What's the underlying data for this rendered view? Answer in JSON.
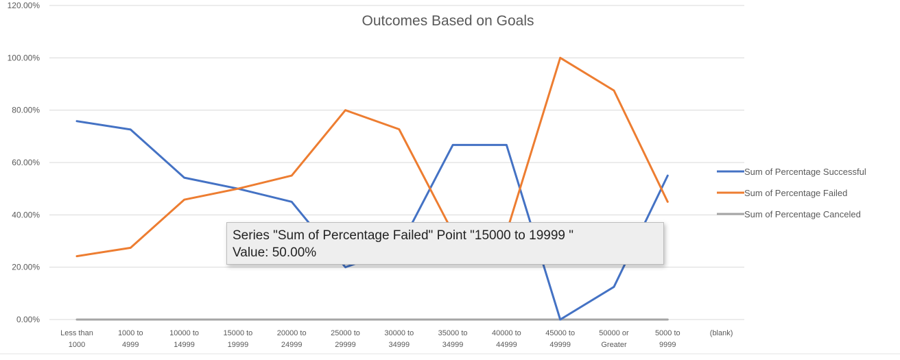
{
  "chart_data": {
    "type": "line",
    "title": "Outcomes Based on Goals",
    "xlabel": "",
    "ylabel": "",
    "ylim": [
      0,
      120
    ],
    "y_ticks": [
      "0.00%",
      "20.00%",
      "40.00%",
      "60.00%",
      "80.00%",
      "100.00%",
      "120.00%"
    ],
    "y_tick_values": [
      0,
      20,
      40,
      60,
      80,
      100,
      120
    ],
    "grid": true,
    "legend_position": "right",
    "categories": [
      [
        "Less than",
        "1000"
      ],
      [
        "1000 to",
        "4999"
      ],
      [
        "10000 to",
        "14999"
      ],
      [
        "15000 to",
        "19999"
      ],
      [
        "20000 to",
        "24999"
      ],
      [
        "25000 to",
        "29999"
      ],
      [
        "30000 to",
        "34999"
      ],
      [
        "35000 to",
        "34999"
      ],
      [
        "40000 to",
        "44999"
      ],
      [
        "45000 to",
        "49999"
      ],
      [
        "50000 or",
        "Greater"
      ],
      [
        "5000 to",
        "9999"
      ],
      [
        "(blank)"
      ]
    ],
    "series": [
      {
        "name": "Sum of Percentage Successful",
        "color": "#4472c4",
        "values": [
          75.8,
          72.6,
          54.2,
          50.0,
          45.0,
          20.0,
          27.3,
          66.7,
          66.7,
          0.0,
          12.5,
          55.0,
          null
        ]
      },
      {
        "name": "Sum of Percentage Failed",
        "color": "#ed7d31",
        "values": [
          24.2,
          27.4,
          45.8,
          50.0,
          55.0,
          80.0,
          72.7,
          33.3,
          33.3,
          100.0,
          87.5,
          45.0,
          null
        ]
      },
      {
        "name": "Sum of Percentage Canceled",
        "color": "#a5a5a5",
        "values": [
          0,
          0,
          0,
          0,
          0,
          0,
          0,
          0,
          0,
          0,
          0,
          0,
          null
        ]
      }
    ]
  },
  "tooltip": {
    "line1": "Series \"Sum of Percentage Failed\" Point \"15000 to 19999 \"",
    "line2": "Value: 50.00%"
  },
  "colors": {
    "gridline": "#d9d9d9",
    "axis": "#bfbfbf",
    "text": "#595959"
  }
}
